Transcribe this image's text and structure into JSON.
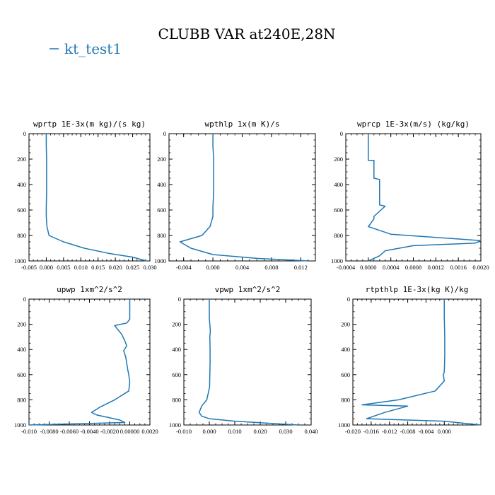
{
  "figure": {
    "title": "CLUBB VAR at240E,28N",
    "legend": [
      {
        "label": "kt_test1",
        "color": "#1f77b4"
      }
    ]
  },
  "chart_data": [
    {
      "type": "line",
      "title": "wprtp  1E-3x(m kg)/(s kg)",
      "xlim": [
        -0.005,
        0.03
      ],
      "xticks": [
        -0.005,
        0.0,
        0.005,
        0.01,
        0.015,
        0.02,
        0.025,
        0.03
      ],
      "xtick_labels": [
        "-0.005",
        "0.000",
        "0.005",
        "0.010",
        "0.015",
        "0.020",
        "0.025",
        "0.030"
      ],
      "ylim": [
        1000,
        0
      ],
      "yticks": [
        0,
        200,
        400,
        600,
        800,
        1000
      ],
      "ytick_labels": [
        "0",
        "200",
        "400",
        "600",
        "800",
        "1000"
      ],
      "series": [
        {
          "name": "kt_test1",
          "color": "#1f77b4",
          "x": [
            0.0,
            0.0,
            0.0001,
            0.0001,
            0.0001,
            0.0,
            0.0,
            0.0002,
            0.0008,
            0.005,
            0.011,
            0.018,
            0.025,
            0.029
          ],
          "y": [
            0,
            100,
            200,
            300,
            450,
            580,
            650,
            730,
            800,
            850,
            900,
            940,
            970,
            1000
          ]
        }
      ]
    },
    {
      "type": "line",
      "title": "wpthlp  1x(m K)/s",
      "xlim": [
        -0.006,
        0.014
      ],
      "xticks": [
        -0.004,
        0.0,
        0.004,
        0.008,
        0.012
      ],
      "xtick_labels": [
        "-0.004",
        "0.000",
        "0.004",
        "0.008",
        "0.012"
      ],
      "ylim": [
        1000,
        0
      ],
      "yticks": [
        0,
        200,
        400,
        600,
        800,
        1000
      ],
      "ytick_labels": [
        "0",
        "200",
        "400",
        "600",
        "800",
        "1000"
      ],
      "series": [
        {
          "name": "kt_test1",
          "color": "#1f77b4",
          "x": [
            0.0,
            0.0,
            0.0001,
            0.0001,
            0.0001,
            0.0,
            0.0,
            -0.0004,
            -0.0015,
            -0.0045,
            -0.003,
            0.0,
            0.006,
            0.013
          ],
          "y": [
            0,
            100,
            200,
            300,
            450,
            580,
            650,
            730,
            800,
            850,
            900,
            950,
            980,
            1000
          ]
        }
      ]
    },
    {
      "type": "line",
      "title": "wprcp  1E-3x(m/s) (kg/kg)",
      "xlim": [
        -0.0004,
        0.002
      ],
      "xticks": [
        -0.0004,
        0.0,
        0.0004,
        0.0008,
        0.0012,
        0.0016,
        0.002
      ],
      "xtick_labels": [
        "-0.0004",
        "0.0000",
        "0.0004",
        "0.0008",
        "0.0012",
        "0.0016",
        "0.0020"
      ],
      "ylim": [
        1000,
        0
      ],
      "yticks": [
        0,
        200,
        400,
        600,
        800,
        1000
      ],
      "ytick_labels": [
        "0",
        "200",
        "400",
        "600",
        "800",
        "1000"
      ],
      "series": [
        {
          "name": "kt_test1",
          "color": "#1f77b4",
          "x": [
            0.0,
            0.0,
            0.0,
            0.0,
            0.0,
            0.0,
            0.0001,
            0.0001,
            0.0001,
            0.0001,
            0.0001,
            0.0001,
            0.0002,
            0.0002,
            0.0002,
            0.0002,
            0.0002,
            0.0003,
            0.0001,
            0.0001,
            0.0,
            0.0,
            0.0004,
            0.002,
            0.0019,
            0.0008,
            0.0003,
            0.0002,
            0.0001,
            0.0
          ],
          "y": [
            0,
            100,
            150,
            190,
            200,
            210,
            210,
            280,
            290,
            310,
            330,
            350,
            360,
            500,
            520,
            540,
            560,
            570,
            650,
            670,
            730,
            730,
            790,
            840,
            860,
            880,
            920,
            960,
            980,
            1000
          ]
        }
      ]
    },
    {
      "type": "line",
      "title": "upwp  1xm^2/s^2",
      "xlim": [
        -0.01,
        0.002
      ],
      "xticks": [
        -0.01,
        -0.008,
        -0.006,
        -0.004,
        -0.002,
        0.0,
        0.002
      ],
      "xtick_labels": [
        "-0.010",
        "-0.0080",
        "-0.0060",
        "-0.0040",
        "-0.0020",
        "0.00000",
        "0.0020"
      ],
      "ylim": [
        1000,
        0
      ],
      "yticks": [
        0,
        200,
        400,
        600,
        800,
        1000
      ],
      "ytick_labels": [
        "0",
        "200",
        "400",
        "600",
        "800",
        "1000"
      ],
      "series": [
        {
          "name": "kt_test1",
          "color": "#1f77b4",
          "x": [
            0.0,
            0.0,
            -0.0003,
            -0.0015,
            -0.0008,
            -0.0005,
            -0.0003,
            -0.0006,
            -0.0004,
            -0.0002,
            -0.0001,
            0.0,
            -0.0001,
            -0.0015,
            -0.003,
            -0.0038,
            -0.0033,
            -0.001,
            -0.0005,
            -0.01
          ],
          "y": [
            0,
            160,
            190,
            210,
            280,
            330,
            370,
            410,
            460,
            560,
            600,
            660,
            730,
            800,
            860,
            900,
            920,
            960,
            980,
            1000
          ]
        }
      ]
    },
    {
      "type": "line",
      "title": "vpwp  1xm^2/s^2",
      "xlim": [
        -0.01,
        0.04
      ],
      "xticks": [
        -0.01,
        0.0,
        0.01,
        0.02,
        0.03,
        0.04
      ],
      "xtick_labels": [
        "-0.010",
        "0.000",
        "0.010",
        "0.020",
        "0.030",
        "0.040"
      ],
      "ylim": [
        1000,
        0
      ],
      "yticks": [
        0,
        200,
        400,
        600,
        800,
        1000
      ],
      "ytick_labels": [
        "0",
        "200",
        "400",
        "600",
        "800",
        "1000"
      ],
      "series": [
        {
          "name": "kt_test1",
          "color": "#1f77b4",
          "x": [
            0.0,
            0.0,
            0.0002,
            0.0004,
            0.0002,
            0.0003,
            0.0003,
            0.0002,
            0.0001,
            -0.001,
            -0.003,
            -0.004,
            -0.003,
            0.0,
            0.01,
            0.035
          ],
          "y": [
            0,
            150,
            200,
            250,
            300,
            400,
            500,
            600,
            700,
            800,
            850,
            900,
            930,
            950,
            970,
            1000
          ]
        }
      ]
    },
    {
      "type": "line",
      "title": "rtpthlp  1E-3x(kg K)/kg",
      "xlim": [
        -0.02,
        0.008
      ],
      "xticks": [
        -0.02,
        -0.016,
        -0.012,
        -0.008,
        -0.004,
        0.0
      ],
      "xtick_labels": [
        "-0.020",
        "-0.016",
        "-0.012",
        "-0.008",
        "-0.004",
        "0.000"
      ],
      "ylim": [
        1000,
        0
      ],
      "yticks": [
        0,
        200,
        400,
        600,
        800,
        1000
      ],
      "ytick_labels": [
        "0",
        "200",
        "400",
        "600",
        "800",
        "1000"
      ],
      "series": [
        {
          "name": "kt_test1",
          "color": "#1f77b4",
          "x": [
            0.0,
            0.0,
            0.0001,
            0.0001,
            0.0,
            -0.0002,
            0.0,
            -0.002,
            -0.01,
            -0.018,
            -0.008,
            -0.013,
            -0.017,
            0.0,
            0.008
          ],
          "y": [
            0,
            150,
            300,
            450,
            580,
            600,
            650,
            730,
            800,
            840,
            850,
            900,
            950,
            970,
            1000
          ]
        }
      ]
    }
  ]
}
